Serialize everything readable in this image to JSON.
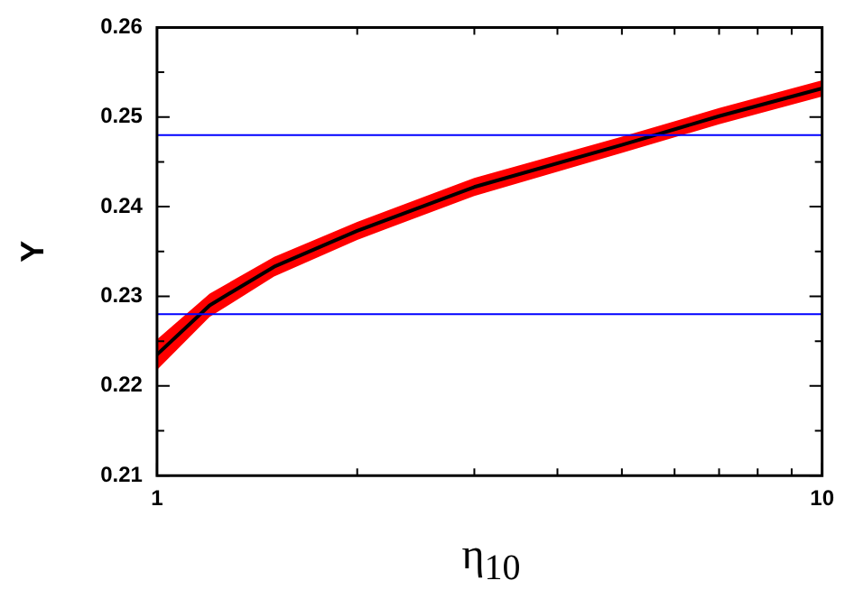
{
  "chart_data": {
    "type": "line",
    "xlabel": "η$_{10}$",
    "ylabel": "Y",
    "log": "x",
    "x": [
      1,
      1.2,
      1.5,
      2,
      3,
      5,
      7,
      10
    ],
    "series": [
      {
        "color": "#000000",
        "values": [
          0.2235,
          0.229,
          0.2333,
          0.2373,
          0.2422,
          0.2469,
          0.2501,
          0.2532
        ],
        "lower": [
          0.2218,
          0.2277,
          0.2322,
          0.2363,
          0.2412,
          0.246,
          0.2492,
          0.2523
        ],
        "upper": [
          0.2252,
          0.2303,
          0.2344,
          0.2383,
          0.2432,
          0.2478,
          0.251,
          0.2541
        ]
      }
    ],
    "xlim": [
      1,
      10
    ],
    "xticks": [
      1,
      {
        "value": 2,
        "label": null
      },
      {
        "value": 3,
        "label": null
      },
      {
        "value": 4,
        "label": null
      },
      {
        "value": 5,
        "label": null
      },
      {
        "value": 6,
        "label": null
      },
      {
        "value": 7,
        "label": null
      },
      {
        "value": 8,
        "label": null
      },
      {
        "value": 9,
        "label": null
      },
      10
    ],
    "ylim": [
      0.21,
      0.26
    ],
    "yticks": [
      0.21,
      {
        "value": 0.215,
        "label": null
      },
      0.22,
      {
        "value": 0.225,
        "label": null
      },
      0.23,
      {
        "value": 0.235,
        "label": null
      },
      0.24,
      {
        "value": 0.245,
        "label": null
      },
      0.25,
      {
        "value": 0.255,
        "label": null
      },
      0.26
    ],
    "ref_lines": [
      {
        "axis": "y",
        "value": 0.248,
        "color": "#0000ff"
      },
      {
        "axis": "y",
        "value": 0.228,
        "color": "#0000ff"
      }
    ],
    "grid": false,
    "legend": false,
    "marker": "none",
    "line_style": "solid"
  }
}
